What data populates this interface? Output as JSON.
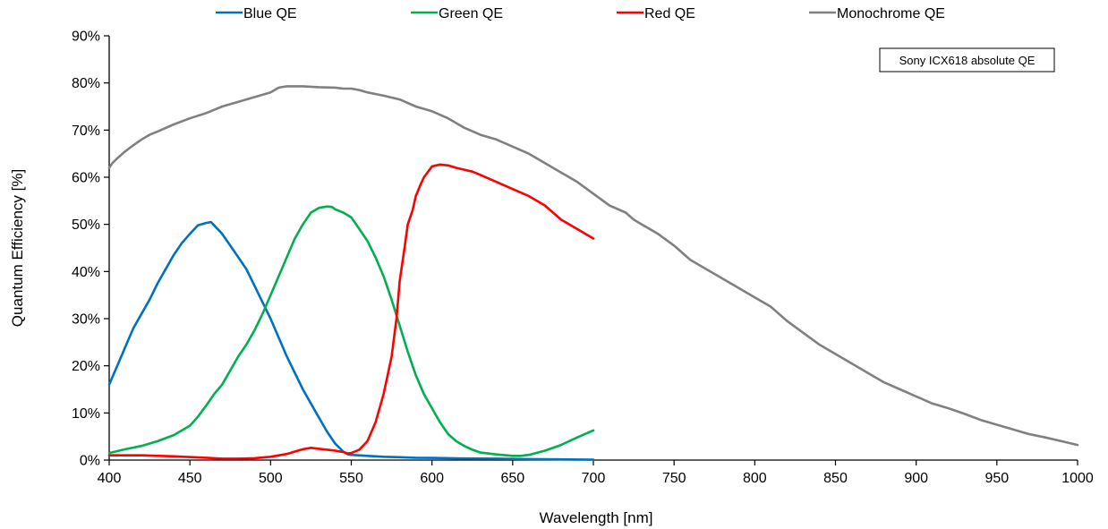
{
  "chart_data": {
    "type": "line",
    "title": "",
    "xlabel": "Wavelength [nm]",
    "ylabel": "Quantum Efficiency [%]",
    "xlim": [
      400,
      1000
    ],
    "ylim": [
      0,
      90
    ],
    "xticks": [
      400,
      450,
      500,
      550,
      600,
      650,
      700,
      750,
      800,
      850,
      900,
      950,
      1000
    ],
    "xtick_labels": [
      "400",
      "450",
      "500",
      "550",
      "600",
      "650",
      "700",
      "750",
      "800",
      "850",
      "900",
      "950",
      "1000"
    ],
    "yticks": [
      0,
      10,
      20,
      30,
      40,
      50,
      60,
      70,
      80,
      90
    ],
    "ytick_labels": [
      "0%",
      "10%",
      "20%",
      "30%",
      "40%",
      "50%",
      "60%",
      "70%",
      "80%",
      "90%"
    ],
    "grid": false,
    "legend_position": "top",
    "annotation": "Sony ICX618 absolute QE",
    "series": [
      {
        "name": "Blue QE",
        "color": "#0070C0",
        "x": [
          400,
          405,
          410,
          415,
          420,
          425,
          430,
          435,
          440,
          445,
          450,
          455,
          460,
          463,
          465,
          470,
          475,
          480,
          485,
          490,
          495,
          500,
          505,
          510,
          515,
          520,
          525,
          530,
          535,
          540,
          545,
          548,
          550,
          560,
          570,
          580,
          590,
          600,
          620,
          640,
          660,
          680,
          700
        ],
        "y": [
          16,
          20,
          24,
          28,
          31,
          34,
          37.5,
          40.5,
          43.5,
          46,
          48,
          49.8,
          50.3,
          50.5,
          49.8,
          48,
          45.5,
          43,
          40.5,
          37,
          33.5,
          30,
          26,
          22,
          18.5,
          15,
          12,
          9,
          6,
          3.5,
          1.8,
          1.2,
          1.1,
          0.9,
          0.7,
          0.6,
          0.5,
          0.45,
          0.35,
          0.3,
          0.2,
          0.15,
          0.1
        ]
      },
      {
        "name": "Green QE",
        "color": "#00B050",
        "x": [
          400,
          410,
          420,
          430,
          440,
          450,
          455,
          460,
          465,
          470,
          475,
          480,
          485,
          490,
          495,
          500,
          505,
          510,
          515,
          520,
          525,
          530,
          535,
          538,
          540,
          545,
          550,
          555,
          560,
          565,
          570,
          575,
          580,
          585,
          590,
          595,
          600,
          605,
          610,
          615,
          620,
          625,
          630,
          640,
          650,
          655,
          660,
          670,
          680,
          690,
          700
        ],
        "y": [
          1.5,
          2.3,
          3,
          4,
          5.3,
          7.3,
          9.2,
          11.5,
          14,
          16,
          19,
          22,
          24.5,
          27.5,
          31,
          35,
          39,
          43,
          47,
          50,
          52.5,
          53.5,
          53.8,
          53.7,
          53.2,
          52.5,
          51.5,
          49,
          46.5,
          43,
          39,
          34,
          28.5,
          23,
          18,
          14,
          11,
          8,
          5.5,
          4,
          3,
          2.2,
          1.6,
          1.2,
          0.9,
          0.9,
          1.1,
          2,
          3.2,
          4.8,
          6.3
        ]
      },
      {
        "name": "Red QE",
        "color": "#FF0000",
        "x": [
          400,
          420,
          440,
          460,
          470,
          480,
          490,
          500,
          510,
          515,
          520,
          525,
          530,
          535,
          540,
          545,
          548,
          550,
          555,
          560,
          565,
          570,
          575,
          578,
          580,
          583,
          585,
          588,
          590,
          593,
          595,
          600,
          605,
          610,
          615,
          620,
          625,
          630,
          640,
          650,
          660,
          670,
          680,
          690,
          700
        ],
        "y": [
          1,
          1,
          0.8,
          0.5,
          0.3,
          0.3,
          0.4,
          0.7,
          1.3,
          1.8,
          2.3,
          2.6,
          2.4,
          2.2,
          2,
          1.7,
          1.4,
          1.5,
          2.2,
          4,
          8,
          14,
          22,
          30,
          38,
          45,
          50,
          53,
          56,
          58.5,
          60,
          62.3,
          62.7,
          62.5,
          62,
          61.6,
          61.2,
          60.5,
          59,
          57.5,
          56,
          54,
          51,
          49,
          47
        ]
      },
      {
        "name": "Monochrome QE",
        "color": "#808080",
        "x": [
          400,
          402,
          405,
          410,
          415,
          420,
          425,
          430,
          440,
          450,
          460,
          470,
          480,
          490,
          500,
          505,
          510,
          515,
          520,
          530,
          540,
          545,
          550,
          555,
          560,
          570,
          580,
          590,
          600,
          610,
          620,
          630,
          640,
          650,
          660,
          670,
          680,
          690,
          700,
          710,
          720,
          725,
          730,
          740,
          750,
          760,
          770,
          780,
          790,
          800,
          810,
          820,
          830,
          840,
          850,
          860,
          870,
          880,
          890,
          900,
          910,
          920,
          930,
          940,
          950,
          960,
          970,
          980,
          990,
          1000
        ],
        "y": [
          62,
          63,
          64,
          65.5,
          66.8,
          68,
          69,
          69.7,
          71.2,
          72.5,
          73.6,
          75,
          76,
          77,
          78,
          79,
          79.3,
          79.3,
          79.3,
          79.1,
          79,
          78.8,
          78.8,
          78.5,
          78,
          77.3,
          76.5,
          75,
          74,
          72.5,
          70.5,
          69,
          68,
          66.5,
          65,
          63,
          61,
          59,
          56.5,
          54,
          52.5,
          51,
          50,
          48,
          45.5,
          42.5,
          40.5,
          38.5,
          36.5,
          34.5,
          32.5,
          29.5,
          27,
          24.5,
          22.5,
          20.5,
          18.5,
          16.5,
          15,
          13.5,
          12,
          11,
          9.8,
          8.5,
          7.5,
          6.5,
          5.5,
          4.8,
          4,
          3.2
        ]
      }
    ]
  }
}
